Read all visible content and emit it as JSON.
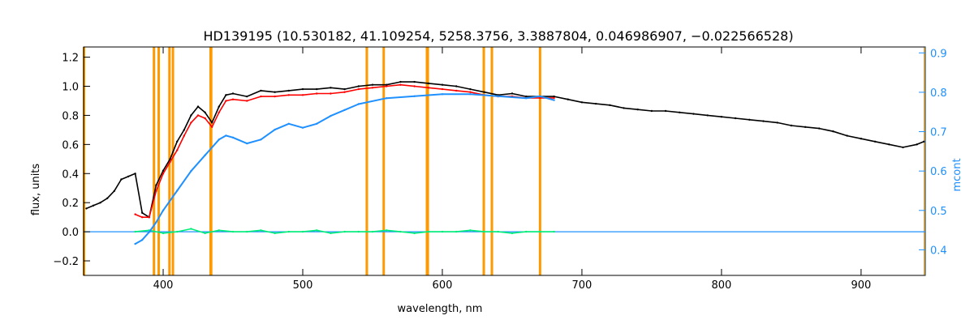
{
  "chart_data": {
    "type": "line",
    "title": "HD139195    (10.530182, 41.109254, 5258.3756, 3.3887804, 0.046986907, −0.022566528)",
    "xlabel": "wavelength, nm",
    "ylabel": "flux, units",
    "y2label": "mcont",
    "xlim": [
      343,
      946
    ],
    "ylim": [
      -0.3,
      1.27
    ],
    "y2lim": [
      0.335,
      0.915
    ],
    "x_ticks": [
      400,
      500,
      600,
      700,
      800,
      900
    ],
    "x_tick_labels": [
      "400",
      "500",
      "600",
      "700",
      "800",
      "900"
    ],
    "y_ticks": [
      -0.2,
      0.0,
      0.2,
      0.4,
      0.6,
      0.8,
      1.0,
      1.2
    ],
    "y_tick_labels": [
      "−0.2",
      "0.0",
      "0.2",
      "0.4",
      "0.6",
      "0.8",
      "1.0",
      "1.2"
    ],
    "y2_ticks": [
      0.4,
      0.5,
      0.6,
      0.7,
      0.8,
      0.9
    ],
    "y2_tick_labels": [
      "0.4",
      "0.5",
      "0.6",
      "0.7",
      "0.8",
      "0.9"
    ],
    "grid": false,
    "legend": "none",
    "colors": {
      "observed": "#000000",
      "model": "#ff0000",
      "residual": "#00ee77",
      "continuum": "#1e90ff",
      "masked_lines": "#ff9900",
      "zero_line": "#1e90ff"
    },
    "masked_lines_nm": [
      393.4,
      396.8,
      404.5,
      407.0,
      434.0,
      434.4,
      545.9,
      558.0,
      589.0,
      589.6,
      629.7,
      635.5,
      670.0
    ],
    "series": [
      {
        "key": "observed",
        "x": [
          345,
          350,
          355,
          360,
          365,
          370,
          375,
          380,
          385,
          390,
          395,
          400,
          405,
          410,
          415,
          420,
          425,
          430,
          435,
          440,
          445,
          450,
          460,
          470,
          480,
          490,
          500,
          510,
          520,
          530,
          540,
          550,
          560,
          570,
          580,
          590,
          600,
          610,
          620,
          630,
          640,
          650,
          660,
          670,
          680,
          690,
          700,
          710,
          720,
          730,
          740,
          750,
          760,
          770,
          780,
          790,
          800,
          810,
          820,
          830,
          840,
          850,
          860,
          870,
          880,
          890,
          900,
          910,
          920,
          930,
          940,
          945
        ],
        "y": [
          0.16,
          0.18,
          0.2,
          0.23,
          0.28,
          0.36,
          0.38,
          0.4,
          0.13,
          0.1,
          0.32,
          0.42,
          0.5,
          0.62,
          0.7,
          0.8,
          0.86,
          0.82,
          0.75,
          0.86,
          0.94,
          0.95,
          0.93,
          0.97,
          0.96,
          0.97,
          0.98,
          0.98,
          0.99,
          0.98,
          1.0,
          1.01,
          1.01,
          1.03,
          1.03,
          1.02,
          1.01,
          1.0,
          0.98,
          0.96,
          0.94,
          0.95,
          0.93,
          0.93,
          0.93,
          0.91,
          0.89,
          0.88,
          0.87,
          0.85,
          0.84,
          0.83,
          0.83,
          0.82,
          0.81,
          0.8,
          0.79,
          0.78,
          0.77,
          0.76,
          0.75,
          0.73,
          0.72,
          0.71,
          0.69,
          0.66,
          0.64,
          0.62,
          0.6,
          0.58,
          0.6,
          0.62
        ]
      },
      {
        "key": "model",
        "x": [
          380,
          385,
          390,
          395,
          400,
          405,
          410,
          415,
          420,
          425,
          430,
          435,
          440,
          445,
          450,
          460,
          470,
          480,
          490,
          500,
          510,
          520,
          530,
          540,
          550,
          560,
          570,
          580,
          590,
          600,
          610,
          620,
          630,
          640,
          650,
          660,
          670,
          680
        ],
        "y": [
          0.12,
          0.1,
          0.1,
          0.28,
          0.4,
          0.48,
          0.56,
          0.66,
          0.75,
          0.8,
          0.78,
          0.72,
          0.82,
          0.9,
          0.91,
          0.9,
          0.93,
          0.93,
          0.94,
          0.94,
          0.95,
          0.95,
          0.96,
          0.98,
          0.99,
          1.0,
          1.01,
          1.0,
          0.99,
          0.98,
          0.97,
          0.96,
          0.94,
          0.93,
          0.93,
          0.92,
          0.92,
          0.92
        ]
      },
      {
        "key": "residual",
        "x": [
          380,
          390,
          400,
          410,
          420,
          430,
          440,
          450,
          460,
          470,
          480,
          490,
          500,
          510,
          520,
          530,
          540,
          550,
          560,
          570,
          580,
          590,
          600,
          610,
          620,
          630,
          640,
          650,
          660,
          670,
          680
        ],
        "y": [
          0.0,
          0.01,
          -0.01,
          0.0,
          0.02,
          -0.01,
          0.01,
          0.0,
          0.0,
          0.01,
          -0.01,
          0.0,
          0.0,
          0.01,
          -0.01,
          0.0,
          0.0,
          0.0,
          0.01,
          0.0,
          -0.01,
          0.0,
          0.0,
          0.0,
          0.01,
          0.0,
          0.0,
          -0.01,
          0.0,
          0.0,
          0.0
        ]
      },
      {
        "key": "continuum",
        "x": [
          380,
          385,
          390,
          395,
          400,
          410,
          420,
          430,
          440,
          445,
          450,
          460,
          470,
          480,
          490,
          500,
          510,
          520,
          530,
          540,
          560,
          580,
          600,
          620,
          640,
          660,
          670,
          680
        ],
        "y": [
          0.415,
          0.425,
          0.445,
          0.47,
          0.5,
          0.55,
          0.6,
          0.64,
          0.68,
          0.69,
          0.685,
          0.67,
          0.68,
          0.705,
          0.72,
          0.71,
          0.72,
          0.74,
          0.755,
          0.77,
          0.785,
          0.79,
          0.795,
          0.795,
          0.79,
          0.785,
          0.79,
          0.78
        ]
      }
    ]
  }
}
